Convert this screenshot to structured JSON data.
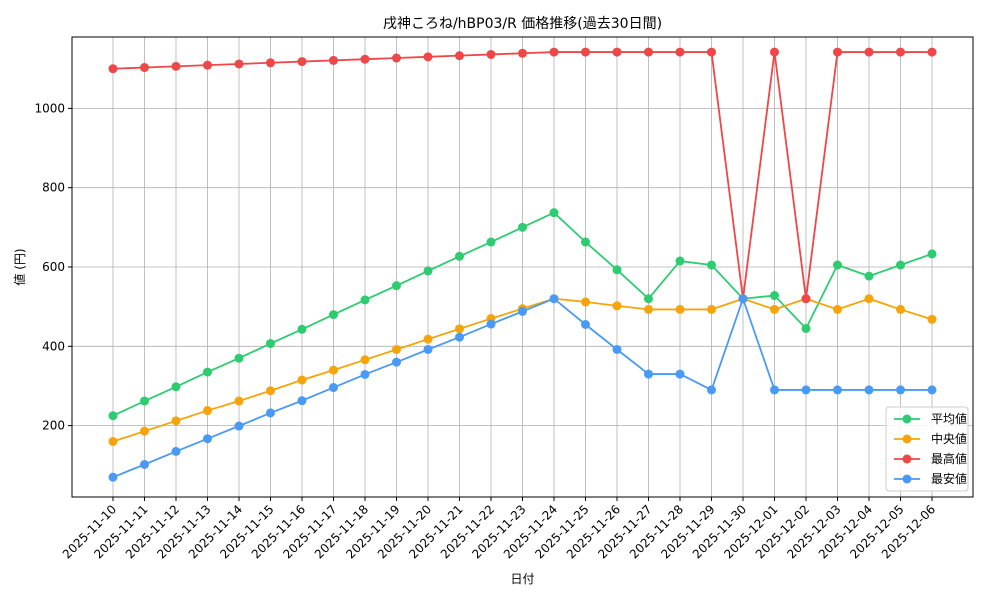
{
  "chart_data": {
    "type": "line",
    "title": "戌神ころね/hBP03/R 価格推移(過去30日間)",
    "xlabel": "日付",
    "ylabel": "値 (円)",
    "ylim": [
      20,
      1180
    ],
    "yticks": [
      200,
      400,
      600,
      800,
      1000
    ],
    "grid": true,
    "legend_position": "lower-right",
    "categories": [
      "2025-11-10",
      "2025-11-11",
      "2025-11-12",
      "2025-11-13",
      "2025-11-14",
      "2025-11-15",
      "2025-11-16",
      "2025-11-17",
      "2025-11-18",
      "2025-11-19",
      "2025-11-20",
      "2025-11-21",
      "2025-11-22",
      "2025-11-23",
      "2025-11-24",
      "2025-11-25",
      "2025-11-26",
      "2025-11-27",
      "2025-11-28",
      "2025-11-29",
      "2025-11-30",
      "2025-12-01",
      "2025-12-02",
      "2025-12-03",
      "2025-12-04",
      "2025-12-05",
      "2025-12-06"
    ],
    "series": [
      {
        "name": "平均値",
        "color": "#2ecc71",
        "values": [
          225,
          262,
          298,
          335,
          370,
          407,
          443,
          480,
          517,
          553,
          590,
          627,
          663,
          700,
          737,
          663,
          593,
          520,
          615,
          605,
          520,
          528,
          445,
          605,
          577,
          605,
          633
        ]
      },
      {
        "name": "中央値",
        "color": "#f5a40c",
        "values": [
          160,
          186,
          212,
          238,
          262,
          288,
          315,
          340,
          366,
          392,
          418,
          444,
          470,
          495,
          520,
          512,
          502,
          493,
          493,
          493,
          520,
          493,
          520,
          493,
          520,
          493,
          468
        ]
      },
      {
        "name": "最高値",
        "color": "#ef4747",
        "values": [
          1100,
          1103,
          1106,
          1109,
          1112,
          1115,
          1118,
          1121,
          1124,
          1127,
          1130,
          1133,
          1136,
          1139,
          1142,
          1142,
          1142,
          1142,
          1142,
          1142,
          520,
          1142,
          520,
          1142,
          1142,
          1142,
          1142
        ]
      },
      {
        "name": "最安値",
        "color": "#4a9af5",
        "values": [
          70,
          102,
          135,
          167,
          199,
          232,
          263,
          296,
          329,
          360,
          392,
          423,
          456,
          488,
          520,
          455,
          392,
          330,
          330,
          290,
          520,
          290,
          290,
          290,
          290,
          290,
          290
        ]
      }
    ]
  }
}
